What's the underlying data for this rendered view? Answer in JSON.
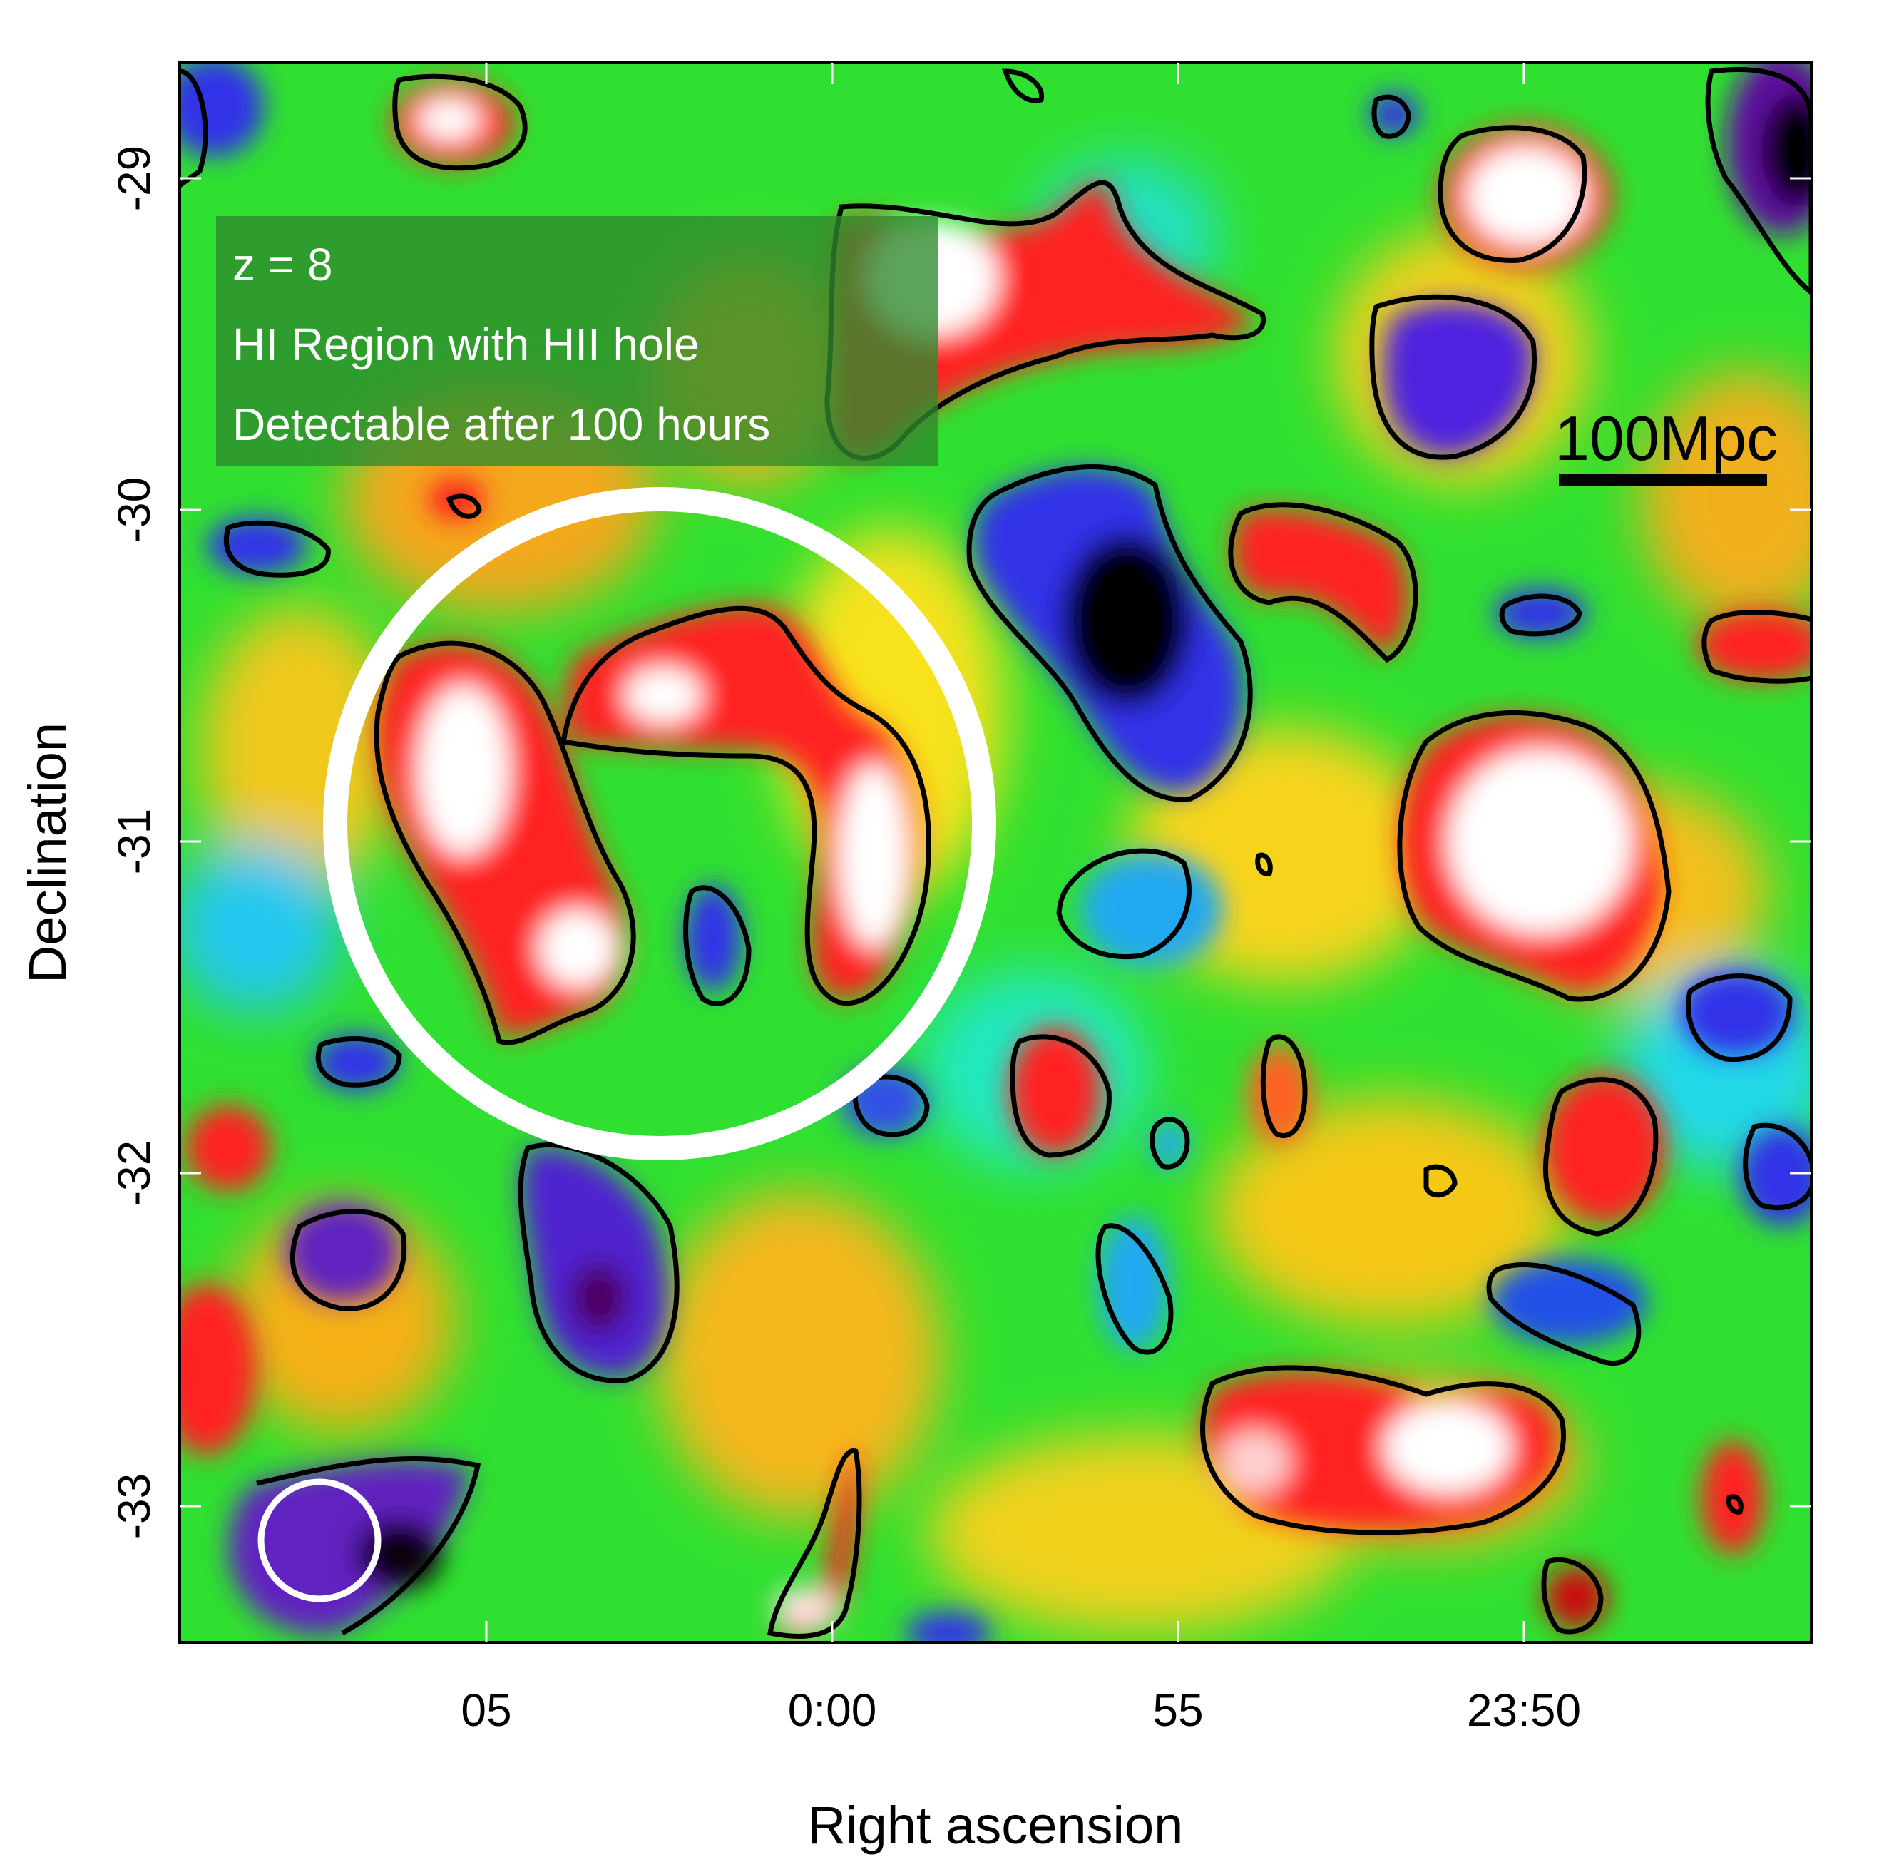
{
  "figure": {
    "xlabel": "Right ascension",
    "ylabel": "Declination",
    "x_ticks": [
      "05",
      "0:00",
      "55",
      "23:50"
    ],
    "y_ticks": [
      "-29",
      "-30",
      "-31",
      "-32",
      "-33"
    ],
    "legend": {
      "lines": [
        "z = 8",
        "HI Region with HII hole",
        "Detectable after 100 hours"
      ]
    },
    "scale_bar": {
      "label": "100Mpc"
    },
    "colors": {
      "frame": "#000000",
      "annotation_circle": "#ffffff",
      "legend_box": "#2e8a2e"
    }
  }
}
